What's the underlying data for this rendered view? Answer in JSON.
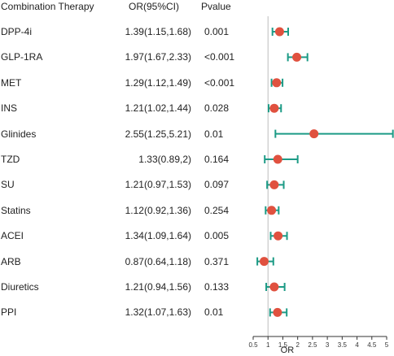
{
  "headers": {
    "therapy": "Combination Therapy",
    "or": "OR(95%CI)",
    "pvalue": "Pvalue"
  },
  "rows": [
    {
      "name": "DPP-4i",
      "or_text": "1.39(1.15,1.68)",
      "p": "0.001"
    },
    {
      "name": "GLP-1RA",
      "or_text": "1.97(1.67,2.33)",
      "p": "<0.001"
    },
    {
      "name": "MET",
      "or_text": "1.29(1.12,1.49)",
      "p": "<0.001"
    },
    {
      "name": "INS",
      "or_text": "1.21(1.02,1.44)",
      "p": "0.028"
    },
    {
      "name": "Glinides",
      "or_text": "2.55(1.25,5.21)",
      "p": "0.01"
    },
    {
      "name": "TZD",
      "or_text": "1.33(0.89,2)",
      "p": "0.164"
    },
    {
      "name": "SU",
      "or_text": "1.21(0.97,1.53)",
      "p": "0.097"
    },
    {
      "name": "Statins",
      "or_text": "1.12(0.92,1.36)",
      "p": "0.254"
    },
    {
      "name": "ACEI",
      "or_text": "1.34(1.09,1.64)",
      "p": "0.005"
    },
    {
      "name": "ARB",
      "or_text": "0.87(0.64,1.18)",
      "p": "0.371"
    },
    {
      "name": "Diuretics",
      "or_text": "1.21(0.94,1.56)",
      "p": "0.133"
    },
    {
      "name": "PPI",
      "or_text": "1.32(1.07,1.63)",
      "p": "0.01"
    }
  ],
  "chart_data": {
    "type": "forest",
    "xlabel": "OR",
    "xlim": [
      0.5,
      5
    ],
    "ticks": [
      "0.5",
      "1",
      "1.5",
      "2",
      "2.5",
      "3",
      "3.5",
      "4",
      "4.5",
      "5"
    ],
    "reference_line": 1,
    "marker_color": "#e0513f",
    "ci_color": "#1d9b86",
    "estimates": [
      {
        "label": "DPP-4i",
        "or": 1.39,
        "lo": 1.15,
        "hi": 1.68
      },
      {
        "label": "GLP-1RA",
        "or": 1.97,
        "lo": 1.67,
        "hi": 2.33
      },
      {
        "label": "MET",
        "or": 1.29,
        "lo": 1.12,
        "hi": 1.49
      },
      {
        "label": "INS",
        "or": 1.21,
        "lo": 1.02,
        "hi": 1.44
      },
      {
        "label": "Glinides",
        "or": 2.55,
        "lo": 1.25,
        "hi": 5.21
      },
      {
        "label": "TZD",
        "or": 1.33,
        "lo": 0.89,
        "hi": 2
      },
      {
        "label": "SU",
        "or": 1.21,
        "lo": 0.97,
        "hi": 1.53
      },
      {
        "label": "Statins",
        "or": 1.12,
        "lo": 0.92,
        "hi": 1.36
      },
      {
        "label": "ACEI",
        "or": 1.34,
        "lo": 1.09,
        "hi": 1.64
      },
      {
        "label": "ARB",
        "or": 0.87,
        "lo": 0.64,
        "hi": 1.18
      },
      {
        "label": "Diuretics",
        "or": 1.21,
        "lo": 0.94,
        "hi": 1.56
      },
      {
        "label": "PPI",
        "or": 1.32,
        "lo": 1.07,
        "hi": 1.63
      }
    ]
  }
}
